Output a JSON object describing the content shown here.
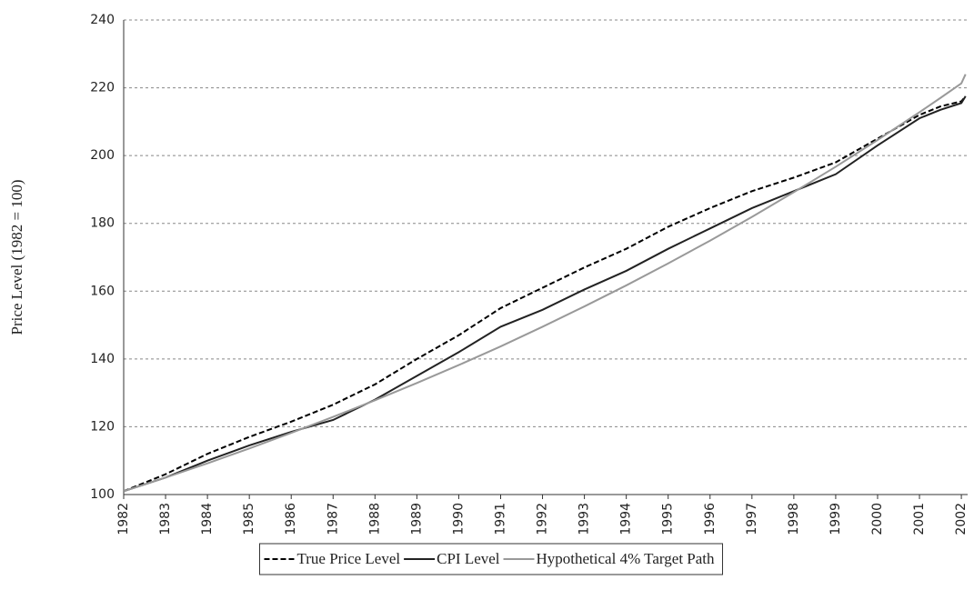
{
  "chart_data": {
    "type": "line",
    "y_label": "Price Level (1982 = 100)",
    "x": [
      1982,
      1983,
      1984,
      1985,
      1986,
      1987,
      1988,
      1989,
      1990,
      1991,
      1992,
      1993,
      1994,
      1995,
      1996,
      1997,
      1998,
      1999,
      2000,
      2001,
      2001.5,
      2002,
      2002.1
    ],
    "series": [
      {
        "name": "True Price Level",
        "color": "#000000",
        "dashed": true,
        "values": [
          101,
          106,
          112,
          117,
          121.5,
          126.5,
          132.5,
          140,
          147,
          155,
          161,
          167,
          172.5,
          179,
          184.5,
          189.5,
          193.5,
          198,
          205,
          212,
          214.5,
          216,
          217.5
        ]
      },
      {
        "name": "CPI Level",
        "color": "#222222",
        "dashed": false,
        "values": [
          101,
          105,
          110,
          114.5,
          118.5,
          122,
          128,
          135,
          142,
          149.5,
          154.5,
          160.5,
          166,
          172.5,
          178.5,
          184.5,
          189.5,
          194.5,
          203,
          211,
          213.5,
          215.5,
          217.5
        ]
      },
      {
        "name": "Hypothetical 4% Target Path",
        "color": "#999999",
        "dashed": false,
        "values": [
          101,
          105,
          109.2,
          113.6,
          118.2,
          122.9,
          127.8,
          132.9,
          138.2,
          143.7,
          149.5,
          155.5,
          161.7,
          168.2,
          174.9,
          181.9,
          189.2,
          196.7,
          204.6,
          212.8,
          217,
          221.3,
          224
        ]
      }
    ],
    "xlim": [
      1982,
      2002.15
    ],
    "ylim": [
      100,
      240
    ],
    "xticks": [
      1982,
      1983,
      1984,
      1985,
      1986,
      1987,
      1988,
      1989,
      1990,
      1991,
      1992,
      1993,
      1994,
      1995,
      1996,
      1997,
      1998,
      1999,
      2000,
      2001,
      2002
    ],
    "yticks": [
      100,
      120,
      140,
      160,
      180,
      200,
      220,
      240
    ],
    "grid": true,
    "legend": "bottom"
  }
}
